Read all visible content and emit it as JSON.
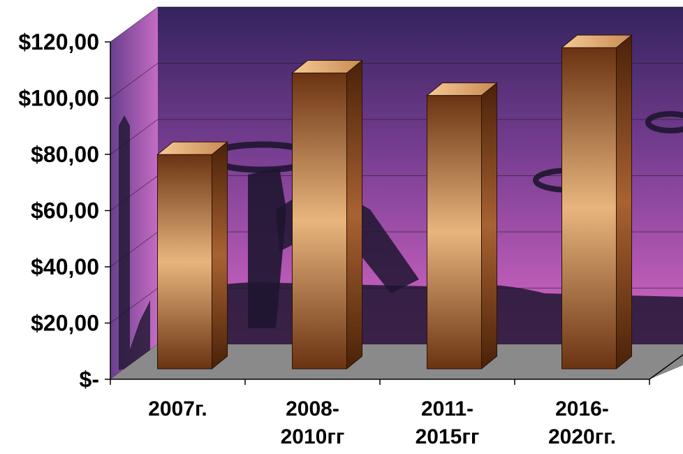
{
  "chart_data": {
    "type": "bar",
    "title": "",
    "xlabel": "",
    "ylabel": "",
    "categories": [
      "2007г.",
      "2008-\n2010гг",
      "2011-\n2015гг",
      "2016-\n2020гг."
    ],
    "values": [
      72,
      101,
      93,
      110
    ],
    "ylim": [
      0,
      120
    ],
    "yticks": [
      {
        "value": 0,
        "label": "$-"
      },
      {
        "value": 20,
        "label": "$20,00"
      },
      {
        "value": 40,
        "label": "$40,00"
      },
      {
        "value": 60,
        "label": "$60,00"
      },
      {
        "value": 80,
        "label": "$80,00"
      },
      {
        "value": 100,
        "label": "$100,00"
      },
      {
        "value": 120,
        "label": "$120,00"
      }
    ],
    "grid": true,
    "legend": "none",
    "style": "3d",
    "colors": {
      "bar_light": "#e8b57e",
      "bar_dark": "#6b3312",
      "bar_top": "#f2c08a",
      "bar_side": "#7a3c16",
      "floor": "#8a8a8a",
      "wall_top": "#34235e",
      "wall_bottom": "#d968c8"
    }
  }
}
